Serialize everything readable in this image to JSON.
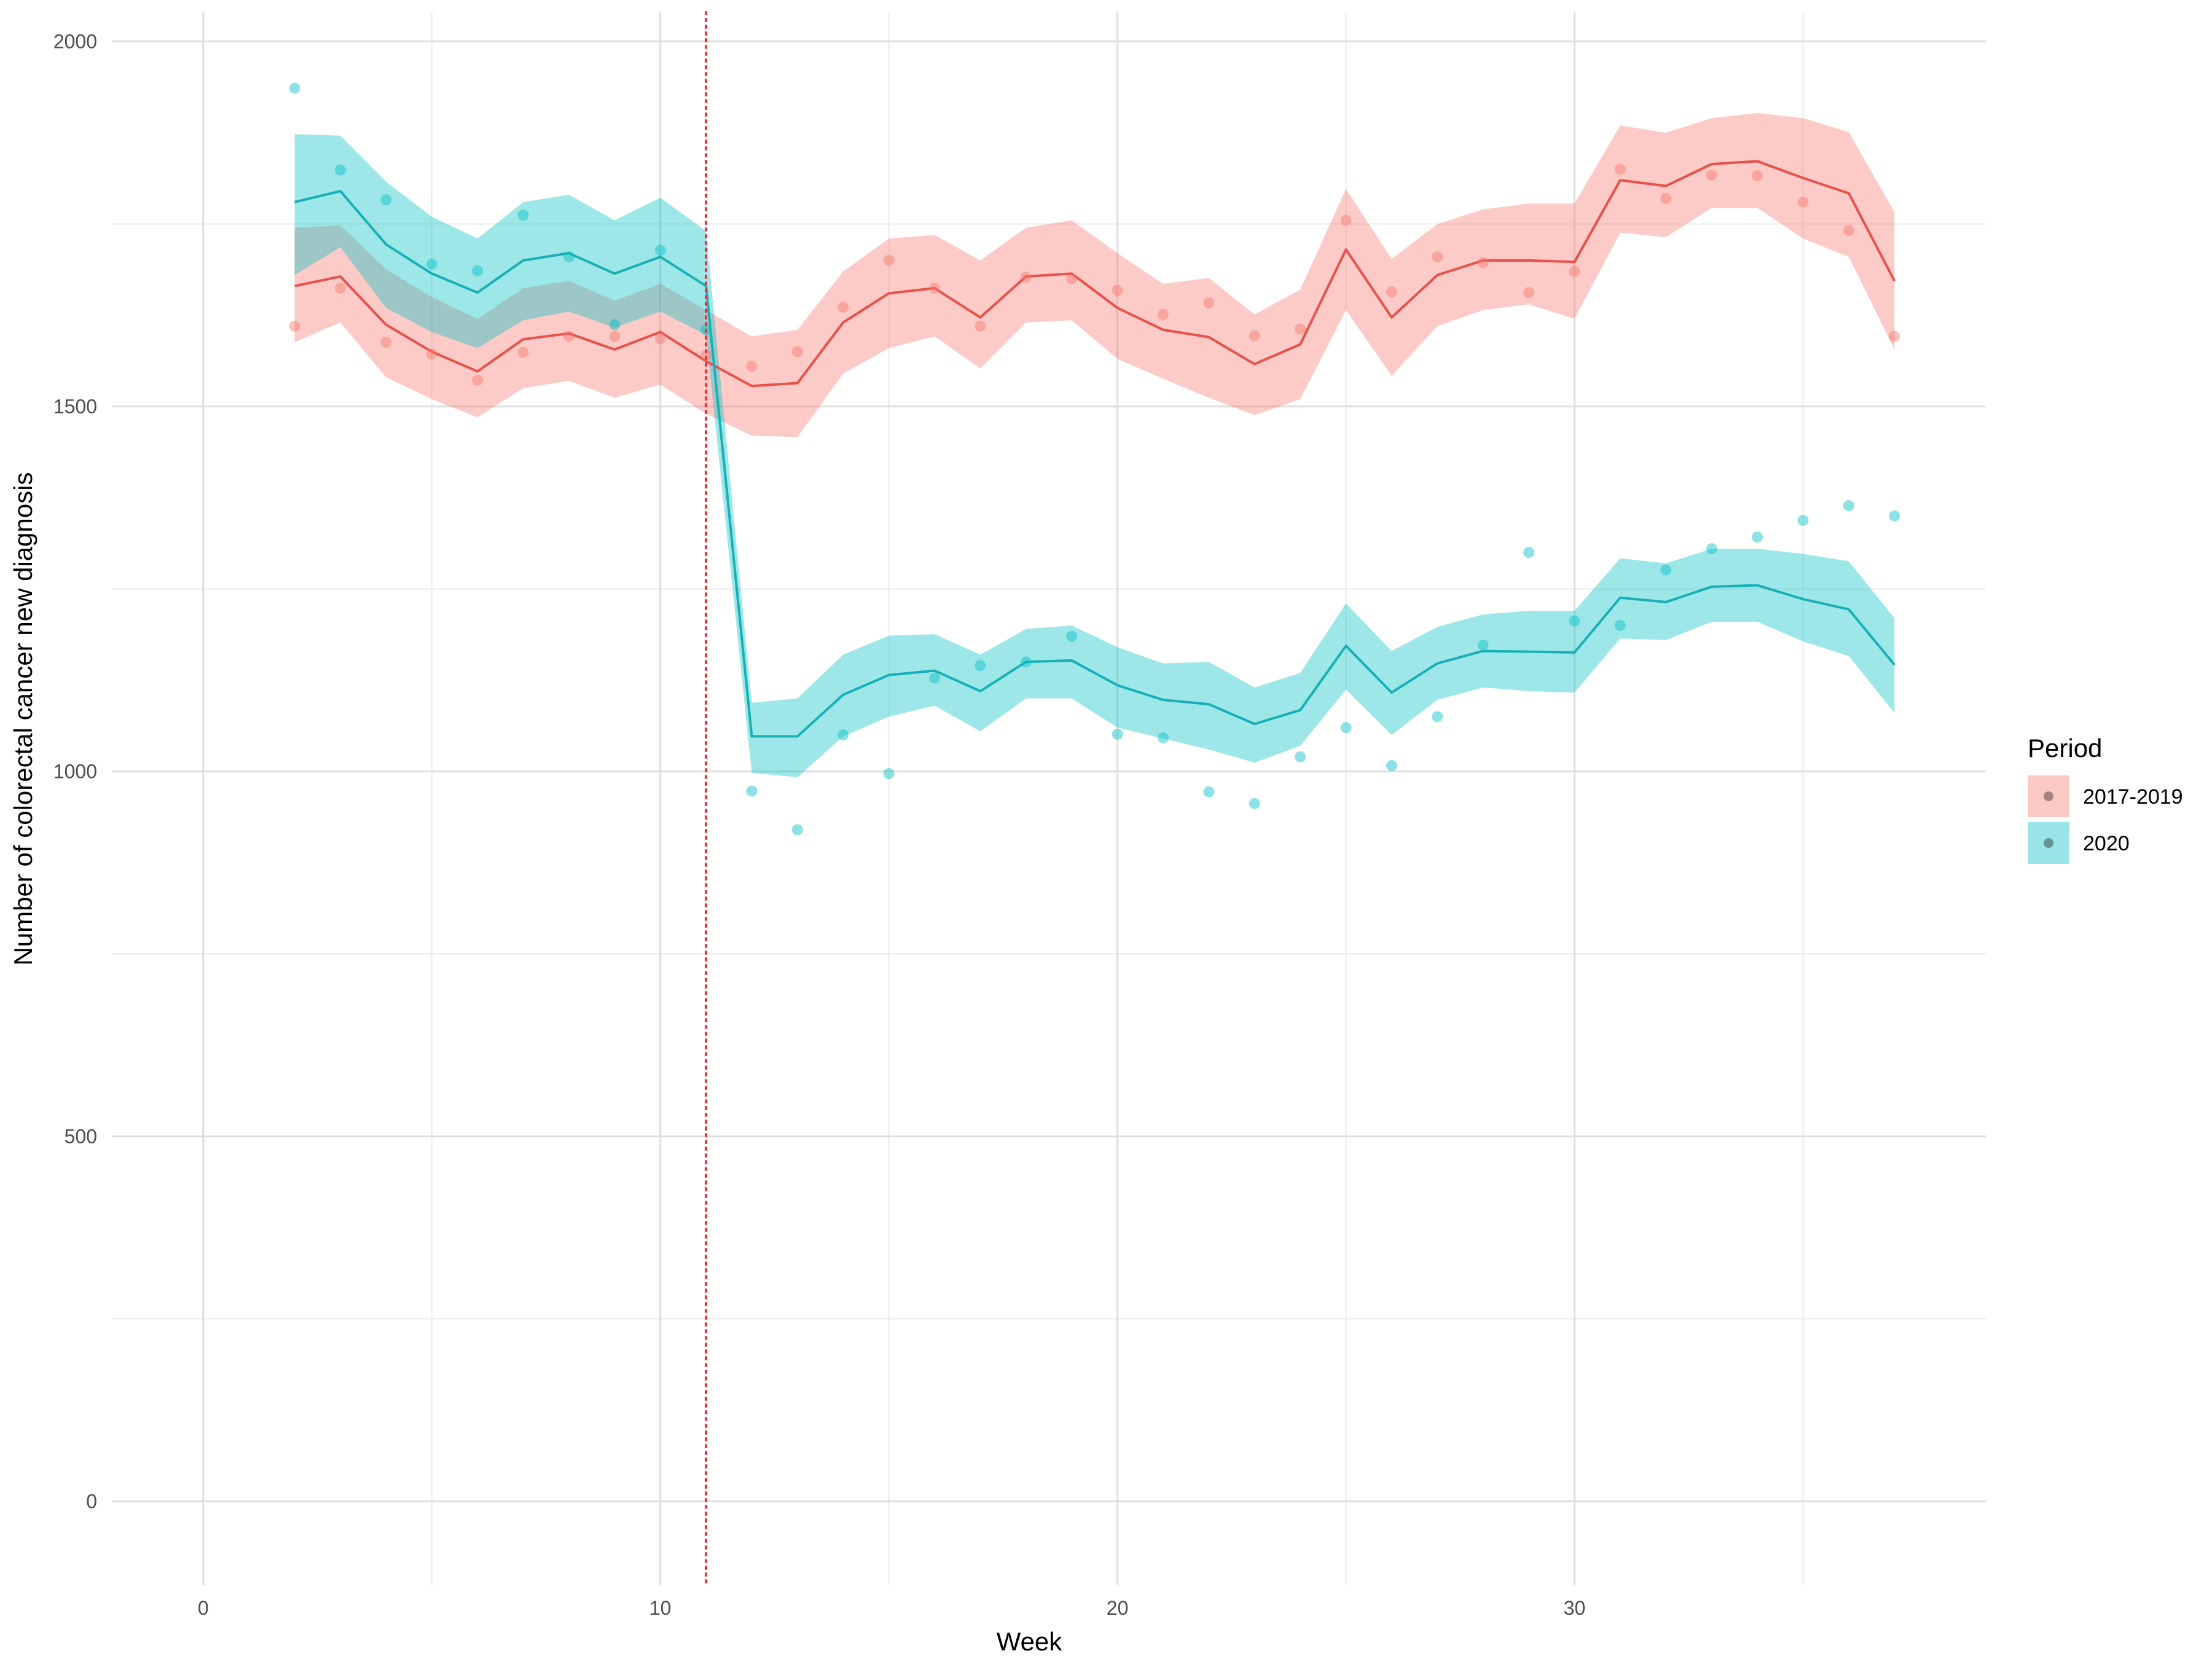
{
  "chart_data": {
    "type": "line",
    "title": "",
    "xlabel": "Week",
    "ylabel": "Number of colorectal cancer new diagnosis",
    "xlim": [
      -2,
      39
    ],
    "ylim": [
      -115,
      2040
    ],
    "x_ticks": [
      0,
      10,
      20,
      30
    ],
    "y_ticks": [
      0,
      500,
      1000,
      1500,
      2000
    ],
    "grid": true,
    "vline": {
      "x": 11,
      "color": "#e8313d",
      "style": "dotted"
    },
    "legend": {
      "title": "Period",
      "position": "right"
    },
    "series": [
      {
        "name": "2017-2019",
        "color": "#f8766d",
        "line_color": "#e8514b",
        "x": [
          2,
          3,
          4,
          5,
          6,
          7,
          8,
          9,
          10,
          11,
          12,
          13,
          14,
          15,
          16,
          17,
          18,
          19,
          20,
          21,
          22,
          23,
          24,
          25,
          26,
          27,
          28,
          29,
          30,
          31,
          32,
          33,
          34,
          35,
          36,
          37
        ],
        "fit": [
          1665,
          1678,
          1612,
          1575,
          1548,
          1592,
          1600,
          1578,
          1602,
          1562,
          1528,
          1532,
          1615,
          1655,
          1662,
          1622,
          1678,
          1682,
          1635,
          1605,
          1595,
          1558,
          1585,
          1715,
          1622,
          1680,
          1700,
          1700,
          1698,
          1810,
          1802,
          1832,
          1836,
          1813,
          1792,
          1672
        ],
        "lower": [
          1588,
          1615,
          1540,
          1510,
          1485,
          1525,
          1535,
          1512,
          1530,
          1490,
          1460,
          1458,
          1545,
          1580,
          1596,
          1552,
          1615,
          1618,
          1565,
          1538,
          1512,
          1488,
          1510,
          1632,
          1542,
          1610,
          1632,
          1640,
          1620,
          1738,
          1732,
          1772,
          1772,
          1730,
          1705,
          1578
        ],
        "upper": [
          1745,
          1748,
          1688,
          1650,
          1620,
          1662,
          1672,
          1645,
          1668,
          1632,
          1596,
          1605,
          1685,
          1730,
          1735,
          1700,
          1745,
          1755,
          1710,
          1668,
          1676,
          1626,
          1660,
          1798,
          1702,
          1750,
          1770,
          1778,
          1778,
          1885,
          1875,
          1895,
          1902,
          1895,
          1876,
          1766
        ],
        "points": [
          1610,
          1662,
          1588,
          1572,
          1536,
          1574,
          1596,
          1596,
          1593,
          1570,
          1555,
          1575,
          1636,
          1700,
          1662,
          1610,
          1677,
          1675,
          1659,
          1626,
          1642,
          1597,
          1606,
          1755,
          1657,
          1705,
          1697,
          1656,
          1685,
          1825,
          1785,
          1817,
          1816,
          1780,
          1741,
          1596
        ]
      },
      {
        "name": "2020",
        "color": "#00bfc4",
        "line_color": "#16b0b5",
        "x": [
          2,
          3,
          4,
          5,
          6,
          7,
          8,
          9,
          10,
          11,
          12,
          13,
          14,
          15,
          16,
          17,
          18,
          19,
          20,
          21,
          22,
          23,
          24,
          25,
          26,
          27,
          28,
          29,
          30,
          31,
          32,
          33,
          34,
          35,
          36,
          37
        ],
        "fit": [
          1780,
          1795,
          1722,
          1682,
          1656,
          1700,
          1710,
          1682,
          1705,
          1665,
          1048,
          1048,
          1105,
          1132,
          1138,
          1110,
          1150,
          1152,
          1118,
          1098,
          1092,
          1065,
          1084,
          1172,
          1108,
          1148,
          1165,
          1164,
          1163,
          1238,
          1232,
          1253,
          1255,
          1236,
          1222,
          1146
        ],
        "lower": [
          1680,
          1718,
          1635,
          1602,
          1580,
          1618,
          1630,
          1608,
          1630,
          1598,
          998,
          992,
          1048,
          1075,
          1090,
          1055,
          1100,
          1100,
          1060,
          1045,
          1030,
          1012,
          1035,
          1112,
          1050,
          1098,
          1115,
          1110,
          1108,
          1182,
          1180,
          1205,
          1205,
          1178,
          1158,
          1080
        ],
        "upper": [
          1873,
          1871,
          1808,
          1760,
          1730,
          1780,
          1790,
          1755,
          1786,
          1740,
          1094,
          1100,
          1160,
          1186,
          1188,
          1160,
          1195,
          1200,
          1170,
          1148,
          1150,
          1115,
          1135,
          1230,
          1165,
          1198,
          1215,
          1220,
          1220,
          1292,
          1285,
          1305,
          1305,
          1298,
          1288,
          1210
        ],
        "points": [
          1936,
          1824,
          1783,
          1695,
          1686,
          1762,
          1705,
          1612,
          1714,
          1605,
          973,
          920,
          1050,
          997,
          1128,
          1145,
          1150,
          1185,
          1051,
          1046,
          972,
          956,
          1020,
          1060,
          1008,
          1075,
          1173,
          1300,
          1206,
          1200,
          1276,
          1305,
          1321,
          1344,
          1364,
          1350
        ]
      }
    ]
  }
}
